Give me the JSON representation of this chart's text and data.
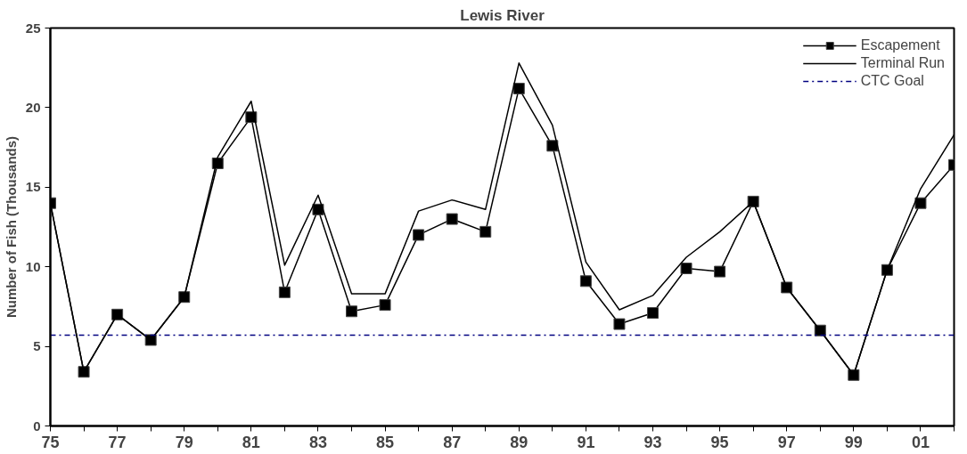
{
  "chart_data": {
    "type": "line",
    "title": "Lewis River",
    "ylabel": "Number of Fish (Thousands)",
    "x": [
      1975,
      1976,
      1977,
      1978,
      1979,
      1980,
      1981,
      1982,
      1983,
      1984,
      1985,
      1986,
      1987,
      1988,
      1989,
      1990,
      1991,
      1992,
      1993,
      1994,
      1995,
      1996,
      1997,
      1998,
      1999,
      2000,
      2001,
      2002
    ],
    "series": [
      {
        "name": "Escapement",
        "color": "#000000",
        "marker": "square",
        "values": [
          14.0,
          3.4,
          7.0,
          5.4,
          8.1,
          16.5,
          19.4,
          8.4,
          13.6,
          7.2,
          7.6,
          12.0,
          13.0,
          12.2,
          21.2,
          17.6,
          9.1,
          6.4,
          7.1,
          9.9,
          9.7,
          14.1,
          8.7,
          6.0,
          3.2,
          9.8,
          14.0,
          16.4
        ]
      },
      {
        "name": "Terminal Run",
        "color": "#000000",
        "marker": "none",
        "values": [
          14.0,
          3.4,
          7.0,
          5.4,
          8.1,
          16.9,
          20.4,
          10.1,
          14.5,
          8.3,
          8.3,
          13.5,
          14.2,
          13.6,
          22.8,
          18.9,
          10.3,
          7.3,
          8.2,
          10.6,
          12.2,
          14.1,
          8.7,
          6.0,
          3.2,
          9.8,
          14.9,
          18.3
        ]
      }
    ],
    "ref_lines": [
      {
        "axis": "y",
        "value": 5.7,
        "label": "CTC Goal",
        "color": "#000080",
        "line_style": "dashdot"
      }
    ],
    "xlim": [
      1975,
      2002
    ],
    "xticks": [
      {
        "value": 1975,
        "label": "75"
      },
      {
        "value": 1976,
        "label": null
      },
      {
        "value": 1977,
        "label": "77"
      },
      {
        "value": 1978,
        "label": null
      },
      {
        "value": 1979,
        "label": "79"
      },
      {
        "value": 1980,
        "label": null
      },
      {
        "value": 1981,
        "label": "81"
      },
      {
        "value": 1982,
        "label": null
      },
      {
        "value": 1983,
        "label": "83"
      },
      {
        "value": 1984,
        "label": null
      },
      {
        "value": 1985,
        "label": "85"
      },
      {
        "value": 1986,
        "label": null
      },
      {
        "value": 1987,
        "label": "87"
      },
      {
        "value": 1988,
        "label": null
      },
      {
        "value": 1989,
        "label": "89"
      },
      {
        "value": 1990,
        "label": null
      },
      {
        "value": 1991,
        "label": "91"
      },
      {
        "value": 1992,
        "label": null
      },
      {
        "value": 1993,
        "label": "93"
      },
      {
        "value": 1994,
        "label": null
      },
      {
        "value": 1995,
        "label": "95"
      },
      {
        "value": 1996,
        "label": null
      },
      {
        "value": 1997,
        "label": "97"
      },
      {
        "value": 1998,
        "label": null
      },
      {
        "value": 1999,
        "label": "99"
      },
      {
        "value": 2000,
        "label": null
      },
      {
        "value": 2001,
        "label": "01"
      },
      {
        "value": 2002,
        "label": null
      }
    ],
    "ylim": [
      0,
      25
    ],
    "yticks": [
      0,
      5,
      10,
      15,
      20,
      25
    ],
    "grid": false,
    "legend": "top right",
    "line_style": "solid"
  }
}
